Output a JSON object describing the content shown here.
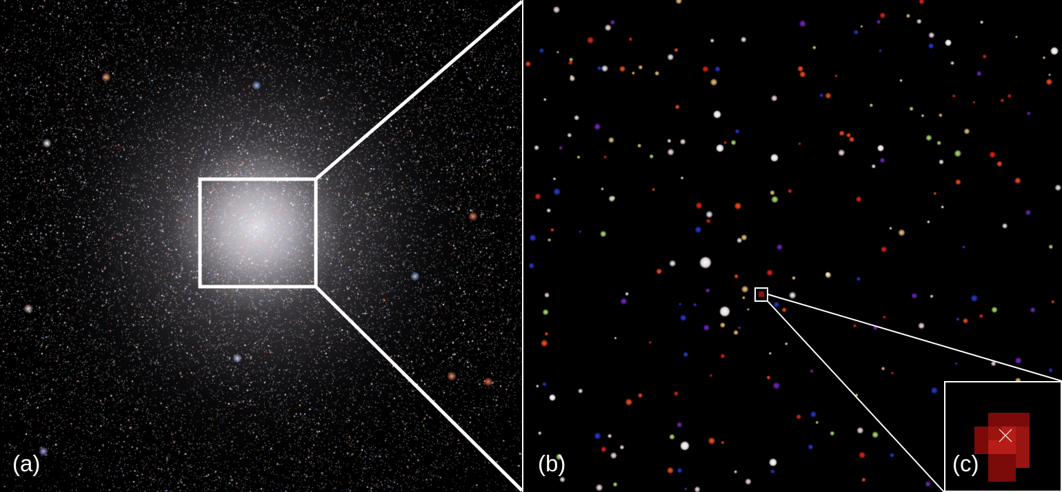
{
  "panels": [
    {
      "label": "(a)",
      "content": "globular-cluster-wide-field"
    },
    {
      "label": "(b)",
      "content": "zoomed-core-region"
    },
    {
      "label": "(c)",
      "content": "single-star-pixel-zoom"
    }
  ],
  "colors": {
    "background": "#000000",
    "frame": "#ffffff",
    "label": "#ffffff",
    "target_pixel_dark": "#7a0b08",
    "target_pixel_mid": "#9a1410",
    "target_pixel_bright": "#b81c16",
    "marker": "#ffffff"
  },
  "icons": {
    "target_marker": "x-cross"
  }
}
